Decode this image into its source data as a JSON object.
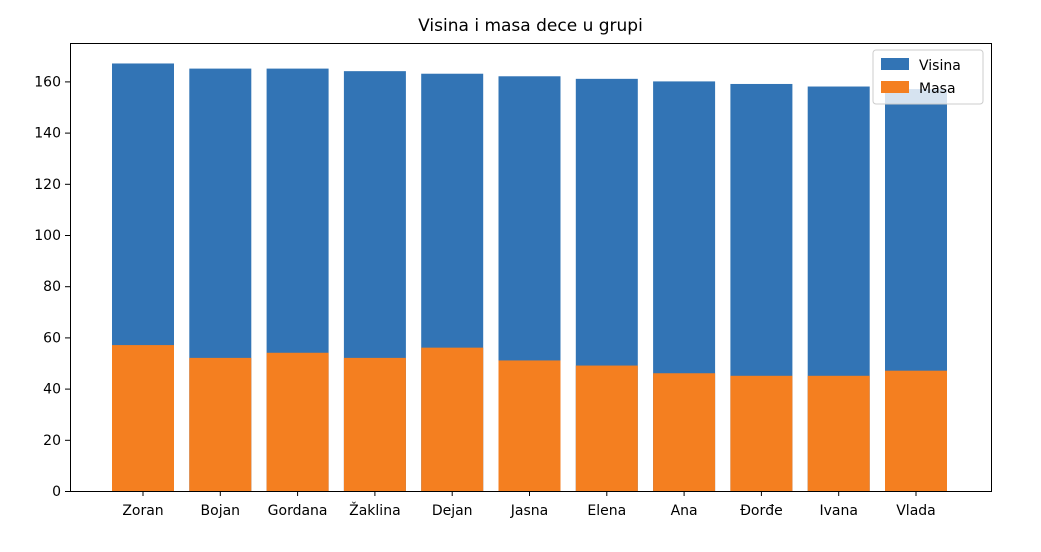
{
  "chart_data": {
    "type": "bar",
    "stacking": "overlay",
    "title": "Visina i masa dece u grupi",
    "xlabel": "",
    "ylabel": "",
    "categories": [
      "Zoran",
      "Bojan",
      "Gordana",
      "Žaklina",
      "Dejan",
      "Jasna",
      "Elena",
      "Ana",
      "Đorđe",
      "Ivana",
      "Vlada"
    ],
    "series": [
      {
        "name": "Visina",
        "color": "#3274b5",
        "values": [
          167,
          165,
          165,
          164,
          163,
          162,
          161,
          160,
          159,
          158,
          157
        ]
      },
      {
        "name": "Masa",
        "color": "#f47f20",
        "values": [
          57,
          52,
          54,
          52,
          56,
          51,
          49,
          46,
          45,
          45,
          47
        ]
      }
    ],
    "ylim": [
      0,
      175
    ],
    "yticks": [
      0,
      20,
      40,
      60,
      80,
      100,
      120,
      140,
      160
    ],
    "grid": false,
    "legend": "upper right"
  }
}
